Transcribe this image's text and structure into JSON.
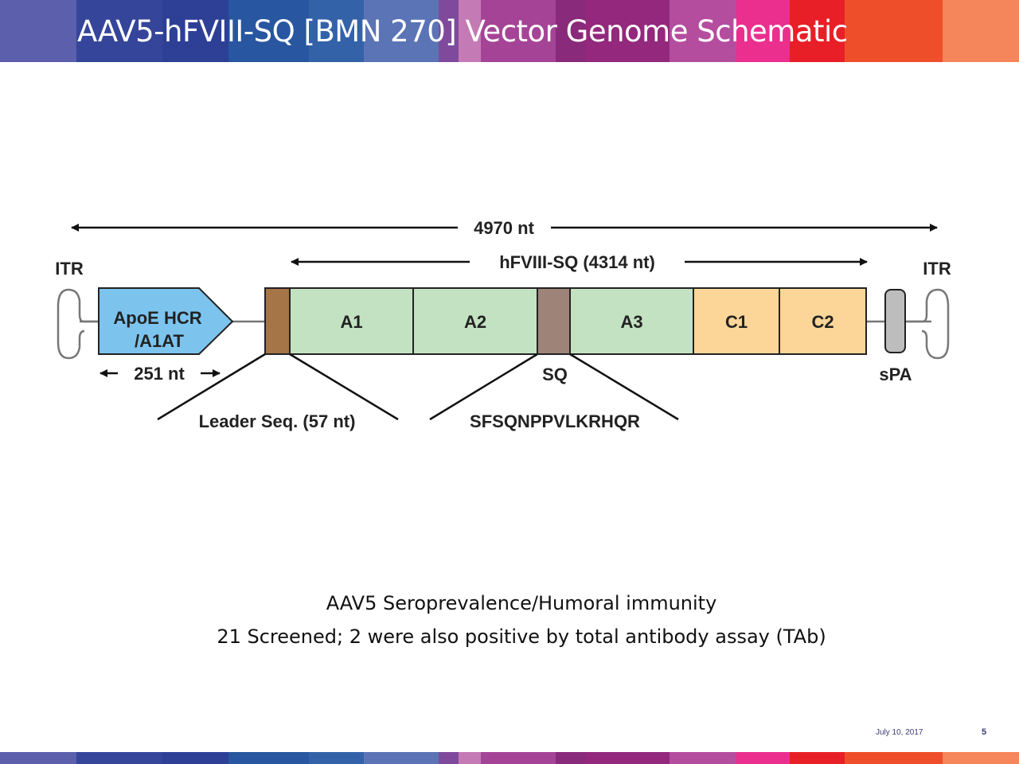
{
  "title": "AAV5-hFVIII-SQ [BMN 270] Vector Genome Schematic",
  "band_colors": [
    "#5b5fac",
    "#35459a",
    "#2e3f96",
    "#2856a0",
    "#3462a9",
    "#5a74b5",
    "#7f4a9c",
    "#c47bb5",
    "#a54496",
    "#8a2a7a",
    "#93287c",
    "#b54d9f",
    "#ea2f8e",
    "#e81f27",
    "#ef4e2a",
    "#f5855a"
  ],
  "diagram": {
    "total_length": "4970 nt",
    "transgene_length": "hFVIII-SQ (4314 nt)",
    "itr_left": "ITR",
    "itr_right": "ITR",
    "promoter": {
      "line1": "ApoE HCR",
      "line2": "/A1AT",
      "length": "251 nt",
      "color": "#7cc4ee"
    },
    "domains": [
      {
        "label": "",
        "color": "#a57447"
      },
      {
        "label": "A1",
        "color": "#c3e2c2"
      },
      {
        "label": "A2",
        "color": "#c3e2c2"
      },
      {
        "label": "",
        "color": "#9e8478"
      },
      {
        "label": "A3",
        "color": "#c3e2c2"
      },
      {
        "label": "C1",
        "color": "#fcd699"
      },
      {
        "label": "C2",
        "color": "#fcd699"
      }
    ],
    "sq_label": "SQ",
    "spa_label": "sPA",
    "leader_label": "Leader Seq. (57 nt)",
    "sq_sequence": "SFSQNPPVLKRHQR"
  },
  "notes": {
    "line1": "AAV5 Seroprevalence/Humoral immunity",
    "line2": "21 Screened; 2 were also positive by total antibody assay (TAb)"
  },
  "footer": {
    "date": "July 10, 2017",
    "page": "5"
  }
}
